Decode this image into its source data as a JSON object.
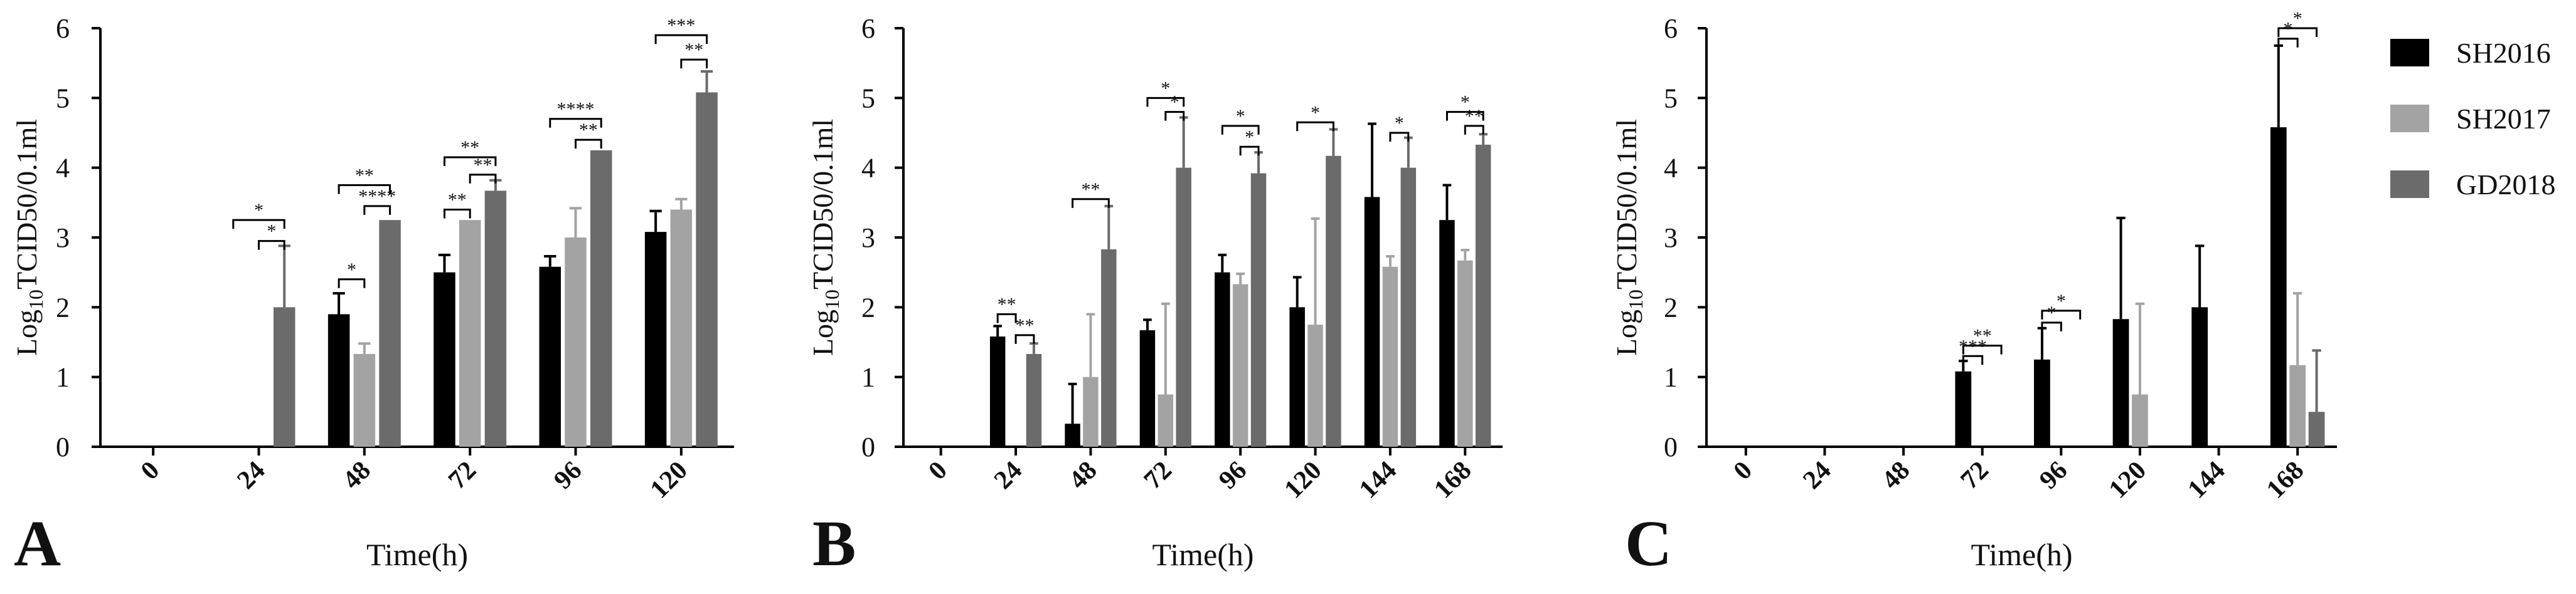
{
  "legend": {
    "items": [
      {
        "label": "SH2016",
        "color": "#000000"
      },
      {
        "label": "SH2017",
        "color": "#a3a3a3"
      },
      {
        "label": "GD2018",
        "color": "#6b6b6b"
      }
    ]
  },
  "chart_data": [
    {
      "type": "bar",
      "panel": "A",
      "xlabel": "Time(h)",
      "ylabel_main": "Log",
      "ylabel_sub": "10",
      "ylabel_rest": "TCID50/0.1ml",
      "ylim": [
        0,
        6
      ],
      "yticks": [
        "0",
        "1",
        "2",
        "3",
        "4",
        "5",
        "6"
      ],
      "categories": [
        "0",
        "24",
        "48",
        "72",
        "96",
        "120"
      ],
      "series": [
        {
          "name": "SH2016",
          "color": "#000000",
          "values": [
            0,
            0,
            1.9,
            2.5,
            2.58,
            3.08
          ],
          "errors": [
            0,
            0,
            0.3,
            0.25,
            0.15,
            0.3
          ]
        },
        {
          "name": "SH2017",
          "color": "#a3a3a3",
          "values": [
            0,
            0,
            1.33,
            3.25,
            3.0,
            3.4
          ],
          "errors": [
            0,
            0,
            0.15,
            0.0,
            0.42,
            0.15
          ]
        },
        {
          "name": "GD2018",
          "color": "#6b6b6b",
          "values": [
            0,
            2.0,
            3.25,
            3.67,
            4.25,
            5.08
          ],
          "errors": [
            0,
            0.88,
            0.0,
            0.15,
            0.0,
            0.3
          ]
        }
      ],
      "significance": [
        {
          "category": "24",
          "from": "SH2016",
          "to": "GD2018",
          "label": "*",
          "y": 3.25
        },
        {
          "category": "24",
          "from": "SH2017",
          "to": "GD2018",
          "label": "*",
          "y": 2.95
        },
        {
          "category": "48",
          "from": "SH2016",
          "to": "GD2018",
          "label": "**",
          "y": 3.75
        },
        {
          "category": "48",
          "from": "SH2017",
          "to": "GD2018",
          "label": "****",
          "y": 3.45
        },
        {
          "category": "48",
          "from": "SH2016",
          "to": "SH2017",
          "label": "*",
          "y": 2.4
        },
        {
          "category": "72",
          "from": "SH2016",
          "to": "GD2018",
          "label": "**",
          "y": 4.15
        },
        {
          "category": "72",
          "from": "SH2017",
          "to": "GD2018",
          "label": "**",
          "y": 3.9
        },
        {
          "category": "72",
          "from": "SH2016",
          "to": "SH2017",
          "label": "**",
          "y": 3.4
        },
        {
          "category": "96",
          "from": "SH2016",
          "to": "GD2018",
          "label": "****",
          "y": 4.7
        },
        {
          "category": "96",
          "from": "SH2017",
          "to": "GD2018",
          "label": "**",
          "y": 4.4
        },
        {
          "category": "120",
          "from": "SH2016",
          "to": "GD2018",
          "label": "***",
          "y": 5.9
        },
        {
          "category": "120",
          "from": "SH2017",
          "to": "GD2018",
          "label": "**",
          "y": 5.55
        }
      ]
    },
    {
      "type": "bar",
      "panel": "B",
      "xlabel": "Time(h)",
      "ylabel_main": "Log",
      "ylabel_sub": "10",
      "ylabel_rest": "TCID50/0.1ml",
      "ylim": [
        0,
        6
      ],
      "yticks": [
        "0",
        "1",
        "2",
        "3",
        "4",
        "5",
        "6"
      ],
      "categories": [
        "0",
        "24",
        "48",
        "72",
        "96",
        "120",
        "144",
        "168"
      ],
      "series": [
        {
          "name": "SH2016",
          "color": "#000000",
          "values": [
            0,
            1.58,
            0.33,
            1.67,
            2.5,
            2.0,
            3.58,
            3.25
          ],
          "errors": [
            0,
            0.15,
            0.57,
            0.15,
            0.25,
            0.43,
            1.05,
            0.5
          ]
        },
        {
          "name": "SH2017",
          "color": "#a3a3a3",
          "values": [
            0,
            0,
            1.0,
            0.75,
            2.33,
            1.75,
            2.58,
            2.67
          ],
          "errors": [
            0,
            0,
            0.9,
            1.3,
            0.15,
            1.52,
            0.15,
            0.15
          ]
        },
        {
          "name": "GD2018",
          "color": "#6b6b6b",
          "values": [
            0,
            1.33,
            2.83,
            4.0,
            3.92,
            4.17,
            4.0,
            4.33
          ],
          "errors": [
            0,
            0.15,
            0.62,
            0.72,
            0.3,
            0.38,
            0.43,
            0.15
          ]
        }
      ],
      "significance": [
        {
          "category": "24",
          "from": "SH2016",
          "to": "SH2017",
          "label": "**",
          "y": 1.9
        },
        {
          "category": "24",
          "from": "SH2017",
          "to": "GD2018",
          "label": "**",
          "y": 1.6
        },
        {
          "category": "48",
          "from": "SH2016",
          "to": "GD2018",
          "label": "**",
          "y": 3.55
        },
        {
          "category": "72",
          "from": "SH2016",
          "to": "GD2018",
          "label": "*",
          "y": 5.0
        },
        {
          "category": "72",
          "from": "SH2017",
          "to": "GD2018",
          "label": "*",
          "y": 4.8
        },
        {
          "category": "96",
          "from": "SH2016",
          "to": "GD2018",
          "label": "*",
          "y": 4.6
        },
        {
          "category": "96",
          "from": "SH2017",
          "to": "GD2018",
          "label": "*",
          "y": 4.3
        },
        {
          "category": "120",
          "from": "SH2016",
          "to": "GD2018",
          "label": "*",
          "y": 4.65
        },
        {
          "category": "144",
          "from": "SH2017",
          "to": "GD2018",
          "label": "*",
          "y": 4.5
        },
        {
          "category": "168",
          "from": "SH2016",
          "to": "GD2018",
          "label": "*",
          "y": 4.8
        },
        {
          "category": "168",
          "from": "SH2017",
          "to": "GD2018",
          "label": "**",
          "y": 4.6
        }
      ]
    },
    {
      "type": "bar",
      "panel": "C",
      "xlabel": "Time(h)",
      "ylabel_main": "Log",
      "ylabel_sub": "10",
      "ylabel_rest": "TCID50/0.1ml",
      "ylim": [
        0,
        6
      ],
      "yticks": [
        "0",
        "1",
        "2",
        "3",
        "4",
        "5",
        "6"
      ],
      "categories": [
        "0",
        "24",
        "48",
        "72",
        "96",
        "120",
        "144",
        "168"
      ],
      "series": [
        {
          "name": "SH2016",
          "color": "#000000",
          "values": [
            0,
            0,
            0,
            1.08,
            1.25,
            1.83,
            2.0,
            4.58
          ],
          "errors": [
            0,
            0,
            0,
            0.15,
            0.45,
            1.45,
            0.88,
            1.17
          ]
        },
        {
          "name": "SH2017",
          "color": "#a3a3a3",
          "values": [
            0,
            0,
            0,
            0,
            0,
            0.75,
            0,
            1.17
          ],
          "errors": [
            0,
            0,
            0,
            0,
            0,
            1.3,
            0,
            1.03
          ]
        },
        {
          "name": "GD2018",
          "color": "#6b6b6b",
          "values": [
            0,
            0,
            0,
            0,
            0,
            0,
            0,
            0.5
          ],
          "errors": [
            0,
            0,
            0,
            0,
            0,
            0,
            0,
            0.88
          ]
        }
      ],
      "significance": [
        {
          "category": "72",
          "from": "SH2016",
          "to": "GD2018",
          "label": "**",
          "y": 1.45
        },
        {
          "category": "72",
          "from": "SH2016",
          "to": "SH2017",
          "label": "***",
          "y": 1.3
        },
        {
          "category": "96",
          "from": "SH2016",
          "to": "GD2018",
          "label": "*",
          "y": 1.95
        },
        {
          "category": "96",
          "from": "SH2016",
          "to": "SH2017",
          "label": "*",
          "y": 1.78
        },
        {
          "category": "168",
          "from": "SH2016",
          "to": "GD2018",
          "label": "*",
          "y": 6.0
        },
        {
          "category": "168",
          "from": "SH2016",
          "to": "SH2017",
          "label": "*",
          "y": 5.85
        }
      ]
    }
  ]
}
